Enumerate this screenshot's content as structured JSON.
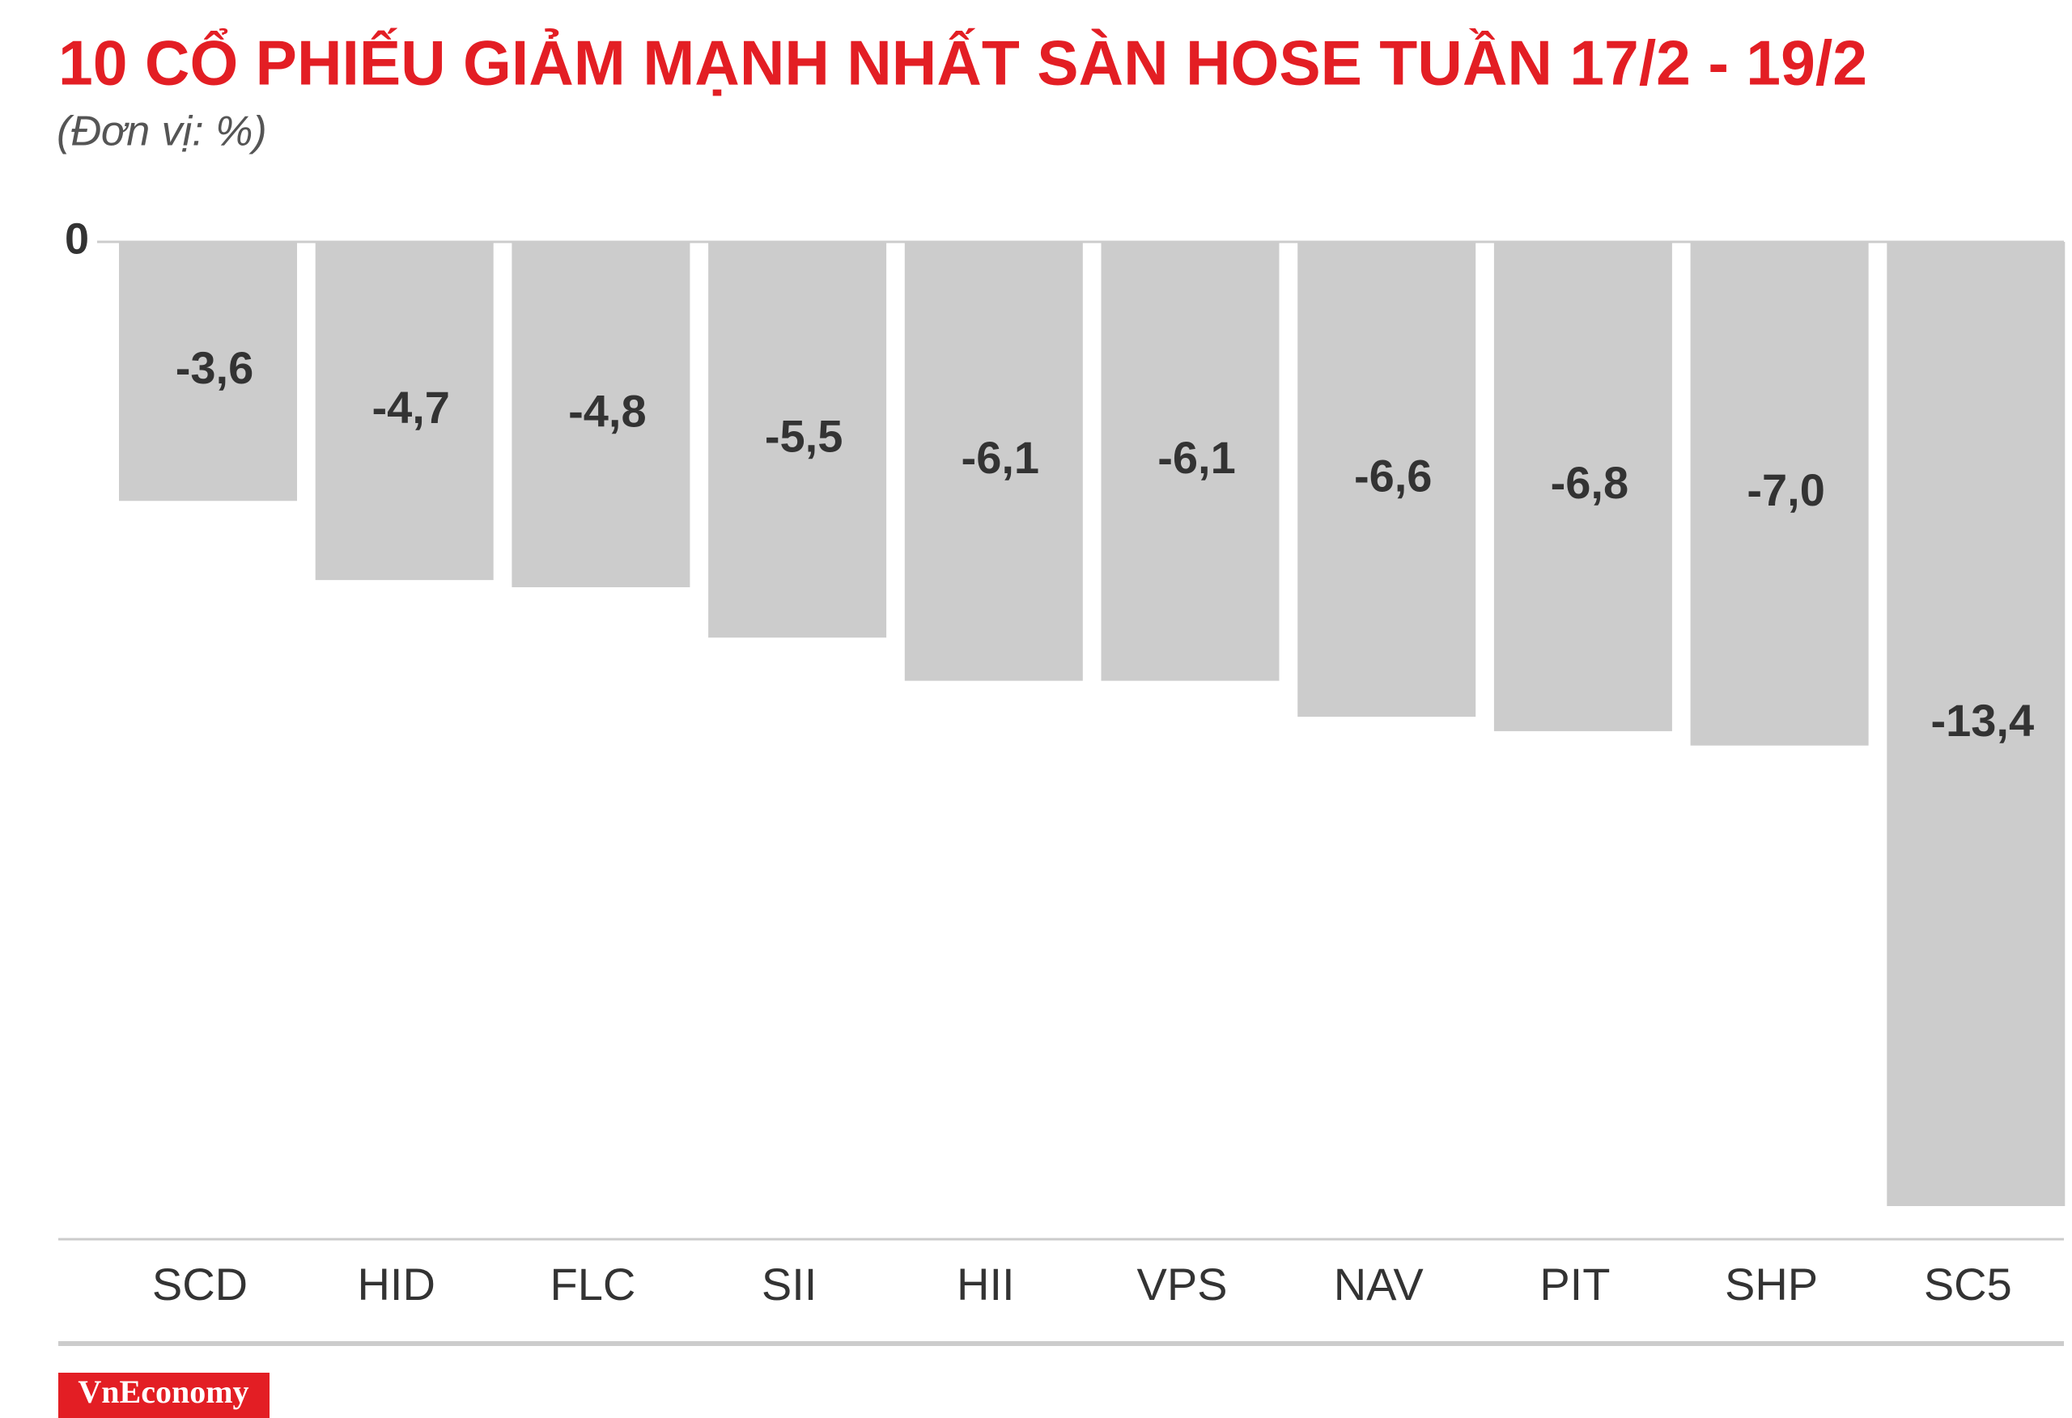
{
  "chart_data": {
    "type": "bar",
    "title": "10 CỔ PHIẾU GIẢM MẠNH NHẤT SÀN HOSE TUẦN 17/2 - 19/2",
    "subtitle": "(Đơn vị: %)",
    "categories": [
      "SCD",
      "HID",
      "FLC",
      "SII",
      "HII",
      "VPS",
      "NAV",
      "PIT",
      "SHP",
      "SC5"
    ],
    "values": [
      -3.6,
      -4.7,
      -4.8,
      -5.5,
      -6.1,
      -6.1,
      -6.6,
      -6.8,
      -7.0,
      -13.4
    ],
    "value_labels": [
      "-3,6",
      "-4,7",
      "-4,8",
      "-5,5",
      "-6,1",
      "-6,1",
      "-6,6",
      "-6,8",
      "-7,0",
      "-13,4"
    ],
    "color": "#cccccc",
    "ylim": [
      -13.4,
      0
    ],
    "yticks": [
      0
    ],
    "source": "VnEconomy"
  }
}
